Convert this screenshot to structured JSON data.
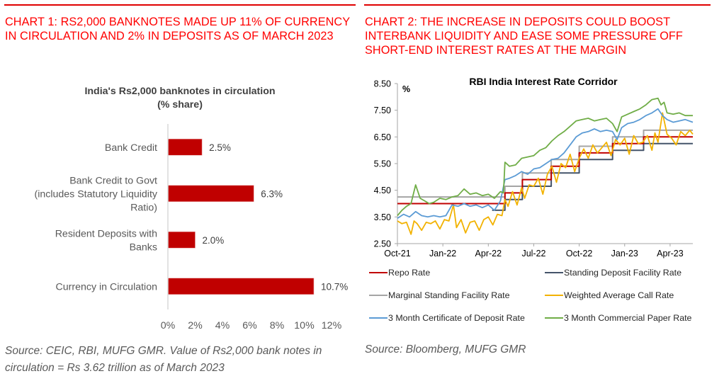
{
  "left_panel": {
    "headline": "CHART 1: RS2,000 BANKNOTES MADE UP 11% OF CURRENCY IN CIRCULATION AND 2% IN DEPOSITS AS OF MARCH 2023",
    "source": "Source: CEIC, RBI, MUFG GMR. Value of Rs2,000 bank notes in circulation = Rs 3.62 trillion as of March 2023"
  },
  "right_panel": {
    "headline": "CHART 2: THE INCREASE IN DEPOSITS COULD BOOST INTERBANK LIQUIDITY AND EASE SOME PRESSURE OFF SHORT-END INTEREST RATES AT THE MARGIN",
    "source": "Source: Bloomberg, MUFG GMR"
  },
  "colors": {
    "headline": "#ff0000",
    "bar": "#c00000"
  },
  "chart_data": [
    {
      "type": "bar",
      "orientation": "horizontal",
      "title": "India's Rs2,000 banknotes in circulation",
      "subtitle": "(% share)",
      "categories": [
        [
          "Bank Credit"
        ],
        [
          "Bank Credit to Govt",
          "(includes Statutory Liquidity",
          "Ratio)"
        ],
        [
          "Resident Deposits with",
          "Banks"
        ],
        [
          "Currency in Circulation"
        ]
      ],
      "values": [
        2.5,
        6.3,
        2.0,
        10.7
      ],
      "data_labels": [
        "2.5%",
        "6.3%",
        "2.0%",
        "10.7%"
      ],
      "xlim": [
        0,
        12
      ],
      "xticks": [
        0,
        2,
        4,
        6,
        8,
        10,
        12
      ],
      "xtick_labels": [
        "0%",
        "2%",
        "4%",
        "6%",
        "8%",
        "10%",
        "12%"
      ],
      "xlabel": "",
      "ylabel": "",
      "grid": false,
      "legend": "none",
      "bar_color": "#c00000"
    },
    {
      "type": "line",
      "title": "RBI India Interest Rate Corridor",
      "ylabel": "%",
      "xlabel": "",
      "x_unit": "months since Oct-2021",
      "xlim": [
        0,
        19.5
      ],
      "xticks": [
        0,
        3,
        6,
        9,
        12,
        15,
        18
      ],
      "xtick_labels": [
        "Oct-21",
        "Jan-22",
        "Apr-22",
        "Jul-22",
        "Oct-22",
        "Jan-23",
        "Apr-23"
      ],
      "ylim": [
        2.5,
        8.5
      ],
      "yticks": [
        2.5,
        3.5,
        4.5,
        5.5,
        6.5,
        7.5,
        8.5
      ],
      "ytick_labels": [
        "2.50",
        "3.50",
        "4.50",
        "5.50",
        "6.50",
        "7.50",
        "8.50"
      ],
      "grid": false,
      "legend": "bottom",
      "series": [
        {
          "name": "Repo Rate",
          "color": "#c00000",
          "step": true,
          "x": [
            0,
            7.1,
            8.25,
            10.15,
            12.0,
            14.2,
            16.25,
            19.5
          ],
          "y": [
            4.0,
            4.4,
            4.9,
            5.4,
            5.9,
            6.25,
            6.5,
            6.5
          ]
        },
        {
          "name": "Standing Deposit Facility Rate",
          "color": "#44546a",
          "step": true,
          "x": [
            6.25,
            7.1,
            8.25,
            10.15,
            12.0,
            14.2,
            16.25,
            19.5
          ],
          "y": [
            3.75,
            4.15,
            4.65,
            5.15,
            5.65,
            6.0,
            6.25,
            6.25
          ]
        },
        {
          "name": "Marginal Standing Facility Rate",
          "color": "#a5a5a5",
          "step": true,
          "x": [
            0,
            7.1,
            8.25,
            10.15,
            12.0,
            14.2,
            16.25,
            19.5
          ],
          "y": [
            4.25,
            4.65,
            5.15,
            5.65,
            6.15,
            6.5,
            6.75,
            6.75
          ]
        },
        {
          "name": "Weighted Average Call Rate",
          "color": "#f2b200",
          "step": false,
          "x": [
            0,
            0.3,
            0.6,
            0.9,
            1.1,
            1.3,
            1.6,
            1.9,
            2.2,
            2.5,
            2.8,
            3.1,
            3.4,
            3.7,
            3.9,
            4.2,
            4.5,
            4.8,
            5.1,
            5.4,
            5.7,
            6.0,
            6.3,
            6.6,
            6.9,
            7.1,
            7.3,
            7.6,
            7.9,
            8.2,
            8.4,
            8.7,
            9.0,
            9.3,
            9.6,
            9.9,
            10.2,
            10.5,
            10.8,
            11.1,
            11.4,
            11.7,
            12.0,
            12.3,
            12.6,
            12.9,
            13.2,
            13.5,
            13.8,
            14.1,
            14.4,
            14.7,
            15.0,
            15.3,
            15.6,
            15.9,
            16.2,
            16.5,
            16.8,
            17.0,
            17.2,
            17.5,
            17.8,
            18.1,
            18.4,
            18.7,
            19.0,
            19.3,
            19.5
          ],
          "y": [
            3.35,
            3.25,
            3.3,
            2.85,
            3.35,
            3.25,
            3.0,
            3.3,
            3.25,
            3.35,
            3.05,
            3.4,
            3.35,
            3.95,
            3.1,
            3.4,
            2.9,
            3.3,
            3.35,
            3.0,
            3.4,
            3.5,
            3.2,
            3.6,
            3.55,
            4.15,
            3.9,
            4.45,
            3.95,
            4.6,
            4.2,
            4.7,
            4.65,
            4.95,
            4.35,
            5.1,
            5.4,
            4.8,
            5.5,
            5.35,
            5.85,
            5.2,
            5.7,
            6.05,
            5.7,
            6.2,
            5.9,
            6.1,
            6.3,
            5.8,
            6.4,
            6.2,
            6.45,
            5.85,
            6.55,
            6.25,
            6.3,
            6.55,
            6.0,
            6.65,
            6.3,
            7.4,
            6.6,
            6.45,
            6.2,
            6.7,
            6.55,
            6.75,
            6.6
          ]
        },
        {
          "name": "3 Month Certificate of Deposit Rate",
          "color": "#5b9bd5",
          "step": false,
          "x": [
            0,
            0.4,
            0.8,
            1.2,
            1.6,
            2.0,
            2.4,
            2.8,
            3.2,
            3.6,
            4.0,
            4.4,
            4.8,
            5.2,
            5.6,
            6.0,
            6.4,
            6.8,
            7.1,
            7.4,
            7.8,
            8.2,
            8.6,
            9.0,
            9.4,
            9.8,
            10.2,
            10.6,
            11.0,
            11.4,
            11.8,
            12.2,
            12.6,
            13.0,
            13.4,
            13.8,
            14.2,
            14.5,
            14.8,
            15.2,
            15.6,
            16.0,
            16.4,
            16.8,
            17.2,
            17.5,
            17.8,
            18.2,
            18.6,
            19.0,
            19.5
          ],
          "y": [
            3.45,
            3.6,
            3.5,
            3.7,
            3.55,
            3.5,
            3.55,
            3.5,
            3.55,
            3.95,
            3.9,
            4.0,
            3.9,
            3.95,
            3.85,
            3.95,
            3.75,
            4.1,
            4.9,
            4.95,
            5.05,
            5.2,
            5.1,
            5.3,
            5.35,
            5.5,
            5.65,
            5.7,
            5.9,
            6.2,
            6.5,
            6.65,
            6.7,
            6.8,
            6.7,
            6.75,
            6.7,
            6.4,
            6.85,
            7.0,
            7.05,
            7.15,
            7.3,
            7.4,
            7.55,
            7.3,
            7.15,
            7.05,
            7.1,
            7.15,
            7.05
          ]
        },
        {
          "name": "3 Month Commercial Paper Rate",
          "color": "#70ad47",
          "step": false,
          "x": [
            0,
            0.3,
            0.6,
            0.9,
            1.2,
            1.5,
            1.8,
            2.1,
            2.4,
            2.8,
            3.2,
            3.6,
            4.0,
            4.4,
            4.8,
            5.2,
            5.6,
            6.0,
            6.4,
            6.8,
            7.0,
            7.1,
            7.4,
            7.8,
            8.2,
            8.6,
            9.0,
            9.4,
            9.8,
            10.2,
            10.6,
            11.0,
            11.4,
            11.8,
            12.2,
            12.6,
            13.0,
            13.4,
            13.8,
            14.2,
            14.5,
            14.8,
            15.2,
            15.6,
            16.0,
            16.4,
            16.8,
            17.2,
            17.4,
            17.6,
            17.8,
            18.2,
            18.6,
            19.0,
            19.5
          ],
          "y": [
            3.55,
            3.75,
            3.9,
            4.0,
            4.7,
            4.2,
            4.1,
            4.0,
            4.05,
            4.2,
            4.15,
            4.25,
            4.3,
            4.55,
            4.35,
            4.4,
            4.3,
            4.35,
            4.2,
            4.45,
            4.4,
            5.55,
            5.4,
            5.45,
            5.7,
            5.75,
            5.8,
            6.0,
            6.1,
            6.35,
            6.55,
            6.7,
            6.9,
            7.1,
            7.15,
            7.2,
            7.1,
            7.15,
            7.2,
            7.0,
            6.7,
            7.25,
            7.35,
            7.45,
            7.55,
            7.7,
            7.9,
            7.95,
            7.7,
            7.8,
            7.4,
            7.35,
            7.4,
            7.3,
            7.3
          ]
        }
      ]
    }
  ]
}
